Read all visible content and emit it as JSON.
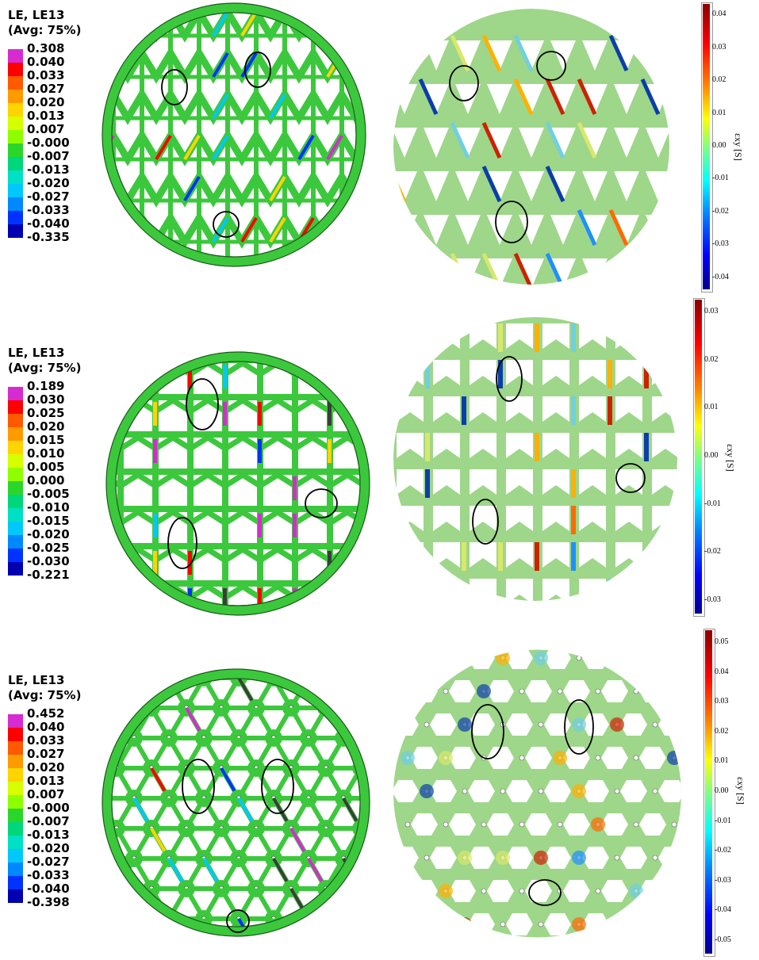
{
  "panels": [
    {
      "legend_title_1": "LE, LE13",
      "legend_title_2": "(Avg: 75%)",
      "legend_values": [
        "0.308",
        "0.040",
        "0.033",
        "0.027",
        "0.020",
        "0.013",
        "0.007",
        "-0.000",
        "-0.007",
        "-0.013",
        "-0.020",
        "-0.027",
        "-0.033",
        "-0.040",
        "-0.335"
      ],
      "colorbar_ticks": [
        "0.04",
        "0.03",
        "0.02",
        "0.01",
        "0.00",
        "-0.01",
        "-0.02",
        "-0.03",
        "-0.04"
      ],
      "colorbar_label": "εxy [S]",
      "pattern": "triangle"
    },
    {
      "legend_title_1": "LE, LE13",
      "legend_title_2": "(Avg: 75%)",
      "legend_values": [
        "0.189",
        "0.030",
        "0.025",
        "0.020",
        "0.015",
        "0.010",
        "0.005",
        "0.000",
        "-0.005",
        "-0.010",
        "-0.015",
        "-0.020",
        "-0.025",
        "-0.030",
        "-0.221"
      ],
      "colorbar_ticks": [
        "0.03",
        "0.02",
        "0.01",
        "0.00",
        "-0.01",
        "-0.02",
        "-0.03"
      ],
      "colorbar_label": "εxy [S]",
      "pattern": "reentrant"
    },
    {
      "legend_title_1": "LE, LE13",
      "legend_title_2": "(Avg: 75%)",
      "legend_values": [
        "0.452",
        "0.040",
        "0.033",
        "0.027",
        "0.020",
        "0.013",
        "0.007",
        "-0.000",
        "-0.007",
        "-0.013",
        "-0.020",
        "-0.027",
        "-0.033",
        "-0.040",
        "-0.398"
      ],
      "colorbar_ticks": [
        "0.05",
        "0.04",
        "0.03",
        "0.02",
        "0.01",
        "0.00",
        "-0.01",
        "-0.02",
        "-0.03",
        "-0.04",
        "-0.05"
      ],
      "colorbar_label": "εxy [S]",
      "pattern": "chiral"
    }
  ],
  "colors": {
    "fem_scale": [
      "#d62bd0",
      "#ff0000",
      "#ff5a00",
      "#ff9a00",
      "#ffd400",
      "#d6ff00",
      "#8eff00",
      "#2bd62b",
      "#00d67a",
      "#00e0c4",
      "#00c8ff",
      "#0088ff",
      "#0033ff",
      "#0000b0",
      "#3c3c3c"
    ],
    "dic_top": "#8b0000",
    "dic_bottom": "#00008b",
    "fem_base": "#3cc83c",
    "dic_base": "#9ed68a"
  }
}
